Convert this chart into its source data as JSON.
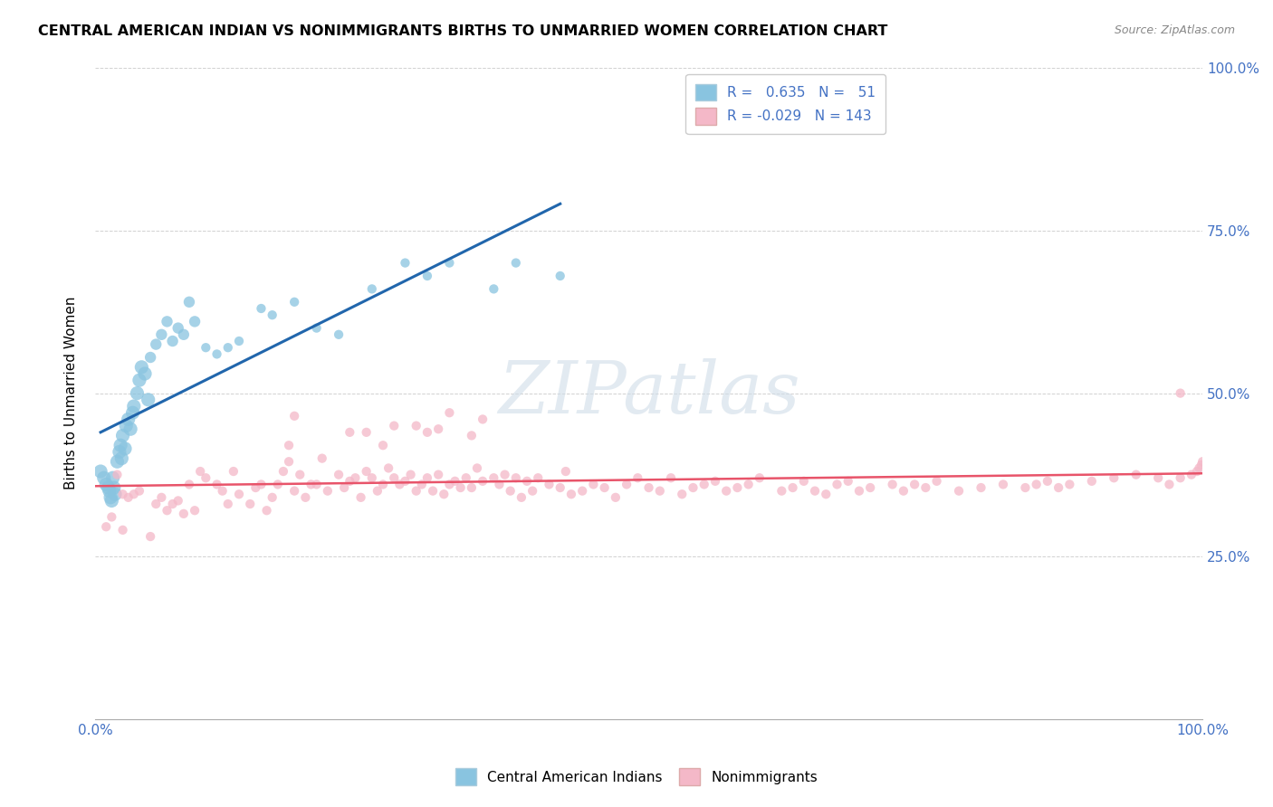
{
  "title": "CENTRAL AMERICAN INDIAN VS NONIMMIGRANTS BIRTHS TO UNMARRIED WOMEN CORRELATION CHART",
  "source": "Source: ZipAtlas.com",
  "ylabel": "Births to Unmarried Women",
  "blue_R": 0.635,
  "blue_N": 51,
  "pink_R": -0.029,
  "pink_N": 143,
  "blue_color": "#89c4e0",
  "pink_color": "#f4b8c8",
  "blue_line_color": "#2166ac",
  "pink_line_color": "#e8546a",
  "legend_label_blue": "Central American Indians",
  "legend_label_pink": "Nonimmigrants",
  "blue_scatter_x": [
    0.005,
    0.008,
    0.01,
    0.012,
    0.013,
    0.014,
    0.015,
    0.016,
    0.017,
    0.018,
    0.02,
    0.022,
    0.023,
    0.024,
    0.025,
    0.027,
    0.028,
    0.03,
    0.032,
    0.034,
    0.035,
    0.038,
    0.04,
    0.042,
    0.045,
    0.048,
    0.05,
    0.055,
    0.06,
    0.065,
    0.07,
    0.075,
    0.08,
    0.085,
    0.09,
    0.1,
    0.11,
    0.12,
    0.13,
    0.15,
    0.16,
    0.18,
    0.2,
    0.22,
    0.25,
    0.28,
    0.3,
    0.32,
    0.36,
    0.38,
    0.42
  ],
  "blue_scatter_y": [
    0.38,
    0.37,
    0.36,
    0.355,
    0.35,
    0.34,
    0.335,
    0.37,
    0.355,
    0.345,
    0.395,
    0.41,
    0.42,
    0.4,
    0.435,
    0.415,
    0.45,
    0.46,
    0.445,
    0.47,
    0.48,
    0.5,
    0.52,
    0.54,
    0.53,
    0.49,
    0.555,
    0.575,
    0.59,
    0.61,
    0.58,
    0.6,
    0.59,
    0.64,
    0.61,
    0.57,
    0.56,
    0.57,
    0.58,
    0.63,
    0.62,
    0.64,
    0.6,
    0.59,
    0.66,
    0.7,
    0.68,
    0.7,
    0.66,
    0.7,
    0.68
  ],
  "pink_scatter_x": [
    0.01,
    0.015,
    0.02,
    0.025,
    0.03,
    0.035,
    0.04,
    0.05,
    0.055,
    0.06,
    0.065,
    0.07,
    0.075,
    0.08,
    0.085,
    0.09,
    0.095,
    0.1,
    0.11,
    0.115,
    0.12,
    0.125,
    0.13,
    0.14,
    0.145,
    0.15,
    0.155,
    0.16,
    0.165,
    0.17,
    0.175,
    0.18,
    0.185,
    0.19,
    0.195,
    0.2,
    0.205,
    0.21,
    0.22,
    0.225,
    0.23,
    0.235,
    0.24,
    0.245,
    0.25,
    0.255,
    0.26,
    0.265,
    0.27,
    0.275,
    0.28,
    0.285,
    0.29,
    0.295,
    0.3,
    0.305,
    0.31,
    0.315,
    0.32,
    0.325,
    0.33,
    0.335,
    0.34,
    0.345,
    0.35,
    0.36,
    0.365,
    0.37,
    0.375,
    0.38,
    0.385,
    0.39,
    0.395,
    0.4,
    0.41,
    0.42,
    0.425,
    0.43,
    0.44,
    0.45,
    0.46,
    0.47,
    0.48,
    0.49,
    0.5,
    0.51,
    0.52,
    0.53,
    0.54,
    0.55,
    0.56,
    0.57,
    0.58,
    0.59,
    0.6,
    0.62,
    0.63,
    0.64,
    0.65,
    0.66,
    0.67,
    0.68,
    0.69,
    0.7,
    0.72,
    0.73,
    0.74,
    0.75,
    0.76,
    0.78,
    0.8,
    0.82,
    0.84,
    0.85,
    0.86,
    0.87,
    0.88,
    0.9,
    0.92,
    0.94,
    0.96,
    0.97,
    0.98,
    0.99,
    0.995,
    0.997,
    0.999,
    1.0,
    0.175,
    0.23,
    0.245,
    0.26,
    0.27,
    0.18,
    0.29,
    0.3,
    0.31,
    0.32,
    0.34,
    0.35,
    0.025,
    0.98
  ],
  "pink_scatter_y": [
    0.295,
    0.31,
    0.375,
    0.29,
    0.34,
    0.345,
    0.35,
    0.28,
    0.33,
    0.34,
    0.32,
    0.33,
    0.335,
    0.315,
    0.36,
    0.32,
    0.38,
    0.37,
    0.36,
    0.35,
    0.33,
    0.38,
    0.345,
    0.33,
    0.355,
    0.36,
    0.32,
    0.34,
    0.36,
    0.38,
    0.395,
    0.35,
    0.375,
    0.34,
    0.36,
    0.36,
    0.4,
    0.35,
    0.375,
    0.355,
    0.365,
    0.37,
    0.34,
    0.38,
    0.37,
    0.35,
    0.36,
    0.385,
    0.37,
    0.36,
    0.365,
    0.375,
    0.35,
    0.36,
    0.37,
    0.35,
    0.375,
    0.345,
    0.36,
    0.365,
    0.355,
    0.37,
    0.355,
    0.385,
    0.365,
    0.37,
    0.36,
    0.375,
    0.35,
    0.37,
    0.34,
    0.365,
    0.35,
    0.37,
    0.36,
    0.355,
    0.38,
    0.345,
    0.35,
    0.36,
    0.355,
    0.34,
    0.36,
    0.37,
    0.355,
    0.35,
    0.37,
    0.345,
    0.355,
    0.36,
    0.365,
    0.35,
    0.355,
    0.36,
    0.37,
    0.35,
    0.355,
    0.365,
    0.35,
    0.345,
    0.36,
    0.365,
    0.35,
    0.355,
    0.36,
    0.35,
    0.36,
    0.355,
    0.365,
    0.35,
    0.355,
    0.36,
    0.355,
    0.36,
    0.365,
    0.355,
    0.36,
    0.365,
    0.37,
    0.375,
    0.37,
    0.36,
    0.37,
    0.375,
    0.38,
    0.385,
    0.39,
    0.395,
    0.42,
    0.44,
    0.44,
    0.42,
    0.45,
    0.465,
    0.45,
    0.44,
    0.445,
    0.47,
    0.435,
    0.46,
    0.345,
    0.5
  ]
}
